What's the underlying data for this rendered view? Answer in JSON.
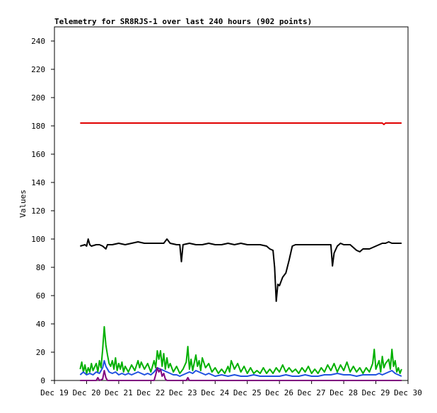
{
  "chart_data": {
    "type": "line",
    "title": "Telemetry for SR8RJS-1 over last 240 hours (902 points)",
    "xlabel": "",
    "ylabel": "Values",
    "ylim": [
      0,
      250
    ],
    "yticks": [
      0,
      20,
      40,
      60,
      80,
      100,
      120,
      140,
      160,
      180,
      200,
      220,
      240
    ],
    "xlim": [
      19,
      30
    ],
    "xticks": [
      {
        "x": 19,
        "label": "Dec 19"
      },
      {
        "x": 20,
        "label": "Dec 20"
      },
      {
        "x": 21,
        "label": "Dec 21"
      },
      {
        "x": 22,
        "label": "Dec 22"
      },
      {
        "x": 23,
        "label": "Dec 23"
      },
      {
        "x": 24,
        "label": "Dec 24"
      },
      {
        "x": 25,
        "label": "Dec 25"
      },
      {
        "x": 26,
        "label": "Dec 26"
      },
      {
        "x": 27,
        "label": "Dec 27"
      },
      {
        "x": 28,
        "label": "Dec 28"
      },
      {
        "x": 29,
        "label": "Dec 29"
      },
      {
        "x": 30,
        "label": "Dec 30"
      }
    ],
    "grid": false,
    "legend": "none",
    "series": [
      {
        "color": "#e00000",
        "points": [
          [
            19.8,
            182
          ],
          [
            29.2,
            182
          ],
          [
            29.25,
            181
          ],
          [
            29.3,
            182
          ],
          [
            29.8,
            182
          ]
        ]
      },
      {
        "color": "#000000",
        "points": [
          [
            19.8,
            95
          ],
          [
            19.95,
            96
          ],
          [
            20.0,
            95
          ],
          [
            20.05,
            100
          ],
          [
            20.1,
            96
          ],
          [
            20.15,
            95
          ],
          [
            20.3,
            96
          ],
          [
            20.4,
            96
          ],
          [
            20.5,
            95
          ],
          [
            20.6,
            93
          ],
          [
            20.65,
            96
          ],
          [
            20.8,
            96
          ],
          [
            21.0,
            97
          ],
          [
            21.2,
            96
          ],
          [
            21.4,
            97
          ],
          [
            21.6,
            98
          ],
          [
            21.8,
            97
          ],
          [
            22.0,
            97
          ],
          [
            22.3,
            97
          ],
          [
            22.4,
            97
          ],
          [
            22.5,
            100
          ],
          [
            22.6,
            97
          ],
          [
            22.8,
            96
          ],
          [
            22.9,
            96
          ],
          [
            22.95,
            84
          ],
          [
            23.0,
            96
          ],
          [
            23.2,
            97
          ],
          [
            23.4,
            96
          ],
          [
            23.6,
            96
          ],
          [
            23.8,
            97
          ],
          [
            24.0,
            96
          ],
          [
            24.2,
            96
          ],
          [
            24.4,
            97
          ],
          [
            24.6,
            96
          ],
          [
            24.8,
            97
          ],
          [
            25.0,
            96
          ],
          [
            25.2,
            96
          ],
          [
            25.4,
            96
          ],
          [
            25.6,
            95
          ],
          [
            25.7,
            93
          ],
          [
            25.8,
            92
          ],
          [
            25.85,
            80
          ],
          [
            25.9,
            56
          ],
          [
            25.95,
            68
          ],
          [
            26.0,
            67
          ],
          [
            26.1,
            73
          ],
          [
            26.2,
            76
          ],
          [
            26.3,
            85
          ],
          [
            26.4,
            95
          ],
          [
            26.5,
            96
          ],
          [
            26.7,
            96
          ],
          [
            26.9,
            96
          ],
          [
            27.1,
            96
          ],
          [
            27.3,
            96
          ],
          [
            27.5,
            96
          ],
          [
            27.6,
            96
          ],
          [
            27.65,
            81
          ],
          [
            27.7,
            90
          ],
          [
            27.8,
            95
          ],
          [
            27.9,
            97
          ],
          [
            28.0,
            96
          ],
          [
            28.2,
            96
          ],
          [
            28.4,
            92
          ],
          [
            28.5,
            91
          ],
          [
            28.6,
            93
          ],
          [
            28.8,
            93
          ],
          [
            28.9,
            94
          ],
          [
            29.0,
            95
          ],
          [
            29.1,
            96
          ],
          [
            29.2,
            97
          ],
          [
            29.3,
            97
          ],
          [
            29.4,
            98
          ],
          [
            29.5,
            97
          ],
          [
            29.7,
            97
          ],
          [
            29.8,
            97
          ]
        ]
      },
      {
        "color": "#00b000",
        "points": [
          [
            19.8,
            8
          ],
          [
            19.85,
            13
          ],
          [
            19.9,
            6
          ],
          [
            19.95,
            11
          ],
          [
            20.0,
            5
          ],
          [
            20.05,
            9
          ],
          [
            20.1,
            6
          ],
          [
            20.15,
            12
          ],
          [
            20.2,
            7
          ],
          [
            20.3,
            12
          ],
          [
            20.35,
            6
          ],
          [
            20.4,
            14
          ],
          [
            20.45,
            9
          ],
          [
            20.5,
            22
          ],
          [
            20.55,
            38
          ],
          [
            20.6,
            25
          ],
          [
            20.65,
            18
          ],
          [
            20.7,
            12
          ],
          [
            20.75,
            10
          ],
          [
            20.8,
            14
          ],
          [
            20.85,
            8
          ],
          [
            20.9,
            16
          ],
          [
            20.95,
            7
          ],
          [
            21.0,
            12
          ],
          [
            21.05,
            8
          ],
          [
            21.1,
            13
          ],
          [
            21.15,
            6
          ],
          [
            21.2,
            10
          ],
          [
            21.3,
            6
          ],
          [
            21.4,
            11
          ],
          [
            21.5,
            7
          ],
          [
            21.6,
            14
          ],
          [
            21.65,
            9
          ],
          [
            21.7,
            13
          ],
          [
            21.8,
            8
          ],
          [
            21.9,
            12
          ],
          [
            22.0,
            6
          ],
          [
            22.1,
            14
          ],
          [
            22.15,
            9
          ],
          [
            22.2,
            21
          ],
          [
            22.25,
            15
          ],
          [
            22.3,
            21
          ],
          [
            22.35,
            10
          ],
          [
            22.4,
            19
          ],
          [
            22.45,
            8
          ],
          [
            22.5,
            16
          ],
          [
            22.55,
            9
          ],
          [
            22.6,
            12
          ],
          [
            22.7,
            6
          ],
          [
            22.8,
            10
          ],
          [
            22.9,
            5
          ],
          [
            23.0,
            8
          ],
          [
            23.1,
            13
          ],
          [
            23.15,
            24
          ],
          [
            23.2,
            8
          ],
          [
            23.25,
            15
          ],
          [
            23.3,
            7
          ],
          [
            23.4,
            18
          ],
          [
            23.45,
            10
          ],
          [
            23.5,
            14
          ],
          [
            23.55,
            7
          ],
          [
            23.6,
            16
          ],
          [
            23.7,
            9
          ],
          [
            23.8,
            12
          ],
          [
            23.9,
            6
          ],
          [
            24.0,
            9
          ],
          [
            24.1,
            5
          ],
          [
            24.2,
            8
          ],
          [
            24.3,
            5
          ],
          [
            24.4,
            10
          ],
          [
            24.45,
            6
          ],
          [
            24.5,
            14
          ],
          [
            24.6,
            8
          ],
          [
            24.7,
            12
          ],
          [
            24.8,
            6
          ],
          [
            24.9,
            10
          ],
          [
            25.0,
            5
          ],
          [
            25.1,
            9
          ],
          [
            25.2,
            5
          ],
          [
            25.3,
            7
          ],
          [
            25.4,
            5
          ],
          [
            25.5,
            9
          ],
          [
            25.6,
            5
          ],
          [
            25.7,
            8
          ],
          [
            25.8,
            5
          ],
          [
            25.9,
            9
          ],
          [
            26.0,
            6
          ],
          [
            26.1,
            11
          ],
          [
            26.2,
            6
          ],
          [
            26.3,
            9
          ],
          [
            26.4,
            6
          ],
          [
            26.5,
            8
          ],
          [
            26.6,
            5
          ],
          [
            26.7,
            9
          ],
          [
            26.8,
            6
          ],
          [
            26.9,
            10
          ],
          [
            27.0,
            5
          ],
          [
            27.1,
            8
          ],
          [
            27.2,
            5
          ],
          [
            27.3,
            9
          ],
          [
            27.4,
            6
          ],
          [
            27.5,
            11
          ],
          [
            27.6,
            7
          ],
          [
            27.7,
            12
          ],
          [
            27.8,
            6
          ],
          [
            27.9,
            11
          ],
          [
            28.0,
            7
          ],
          [
            28.1,
            13
          ],
          [
            28.2,
            6
          ],
          [
            28.3,
            10
          ],
          [
            28.4,
            6
          ],
          [
            28.5,
            9
          ],
          [
            28.6,
            5
          ],
          [
            28.7,
            9
          ],
          [
            28.8,
            6
          ],
          [
            28.9,
            12
          ],
          [
            28.95,
            22
          ],
          [
            29.0,
            8
          ],
          [
            29.1,
            14
          ],
          [
            29.15,
            6
          ],
          [
            29.2,
            17
          ],
          [
            29.25,
            9
          ],
          [
            29.3,
            12
          ],
          [
            29.4,
            15
          ],
          [
            29.45,
            8
          ],
          [
            29.5,
            22
          ],
          [
            29.55,
            10
          ],
          [
            29.6,
            14
          ],
          [
            29.65,
            6
          ],
          [
            29.7,
            9
          ],
          [
            29.75,
            5
          ],
          [
            29.8,
            8
          ]
        ]
      },
      {
        "color": "#2050e0",
        "points": [
          [
            19.8,
            4
          ],
          [
            19.9,
            6
          ],
          [
            20.0,
            4
          ],
          [
            20.1,
            5
          ],
          [
            20.2,
            4
          ],
          [
            20.3,
            6
          ],
          [
            20.4,
            5
          ],
          [
            20.5,
            9
          ],
          [
            20.55,
            14
          ],
          [
            20.6,
            10
          ],
          [
            20.7,
            6
          ],
          [
            20.8,
            5
          ],
          [
            20.9,
            6
          ],
          [
            21.0,
            4
          ],
          [
            21.1,
            5
          ],
          [
            21.2,
            4
          ],
          [
            21.3,
            5
          ],
          [
            21.4,
            4
          ],
          [
            21.5,
            5
          ],
          [
            21.6,
            6
          ],
          [
            21.7,
            5
          ],
          [
            21.8,
            4
          ],
          [
            21.9,
            5
          ],
          [
            22.0,
            4
          ],
          [
            22.1,
            6
          ],
          [
            22.2,
            9
          ],
          [
            22.3,
            8
          ],
          [
            22.4,
            7
          ],
          [
            22.5,
            6
          ],
          [
            22.6,
            5
          ],
          [
            22.7,
            4
          ],
          [
            22.8,
            4
          ],
          [
            22.9,
            3
          ],
          [
            23.0,
            4
          ],
          [
            23.1,
            5
          ],
          [
            23.2,
            6
          ],
          [
            23.3,
            5
          ],
          [
            23.4,
            7
          ],
          [
            23.5,
            6
          ],
          [
            23.6,
            5
          ],
          [
            23.7,
            4
          ],
          [
            23.8,
            5
          ],
          [
            23.9,
            4
          ],
          [
            24.0,
            3
          ],
          [
            24.2,
            4
          ],
          [
            24.4,
            3
          ],
          [
            24.6,
            4
          ],
          [
            24.8,
            3
          ],
          [
            25.0,
            3
          ],
          [
            25.2,
            4
          ],
          [
            25.4,
            3
          ],
          [
            25.6,
            3
          ],
          [
            25.8,
            3
          ],
          [
            26.0,
            3
          ],
          [
            26.2,
            4
          ],
          [
            26.4,
            3
          ],
          [
            26.6,
            3
          ],
          [
            26.8,
            4
          ],
          [
            27.0,
            3
          ],
          [
            27.2,
            3
          ],
          [
            27.4,
            4
          ],
          [
            27.6,
            4
          ],
          [
            27.8,
            5
          ],
          [
            28.0,
            4
          ],
          [
            28.2,
            4
          ],
          [
            28.4,
            3
          ],
          [
            28.6,
            4
          ],
          [
            28.8,
            4
          ],
          [
            29.0,
            4
          ],
          [
            29.1,
            5
          ],
          [
            29.2,
            4
          ],
          [
            29.3,
            5
          ],
          [
            29.4,
            6
          ],
          [
            29.5,
            7
          ],
          [
            29.6,
            5
          ],
          [
            29.7,
            4
          ],
          [
            29.8,
            3
          ]
        ]
      },
      {
        "color": "#800080",
        "points": [
          [
            19.8,
            0
          ],
          [
            20.3,
            0
          ],
          [
            20.35,
            2
          ],
          [
            20.4,
            0
          ],
          [
            20.5,
            1
          ],
          [
            20.55,
            7
          ],
          [
            20.6,
            2
          ],
          [
            20.65,
            0
          ],
          [
            21.5,
            0
          ],
          [
            22.1,
            0
          ],
          [
            22.15,
            4
          ],
          [
            22.2,
            9
          ],
          [
            22.25,
            6
          ],
          [
            22.3,
            8
          ],
          [
            22.35,
            3
          ],
          [
            22.4,
            5
          ],
          [
            22.45,
            1
          ],
          [
            22.5,
            0
          ],
          [
            23.1,
            0
          ],
          [
            23.15,
            2
          ],
          [
            23.2,
            0
          ],
          [
            29.8,
            0
          ]
        ]
      }
    ]
  }
}
